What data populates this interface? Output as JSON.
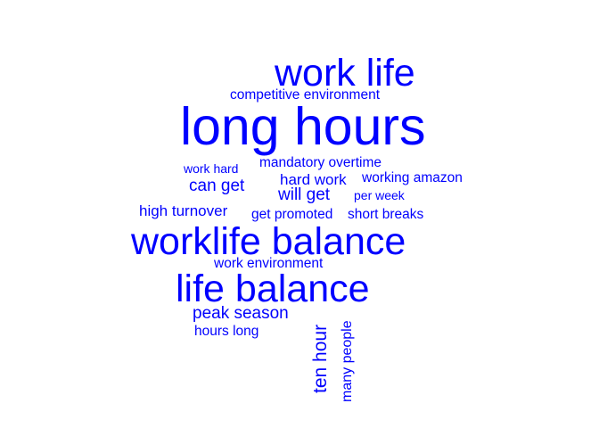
{
  "colors": {
    "word": "#0000ff",
    "background": "#ffffff"
  },
  "words": [
    {
      "text": "long hours"
    },
    {
      "text": "worklife balance"
    },
    {
      "text": "life balance"
    },
    {
      "text": "work life"
    },
    {
      "text": "ten hour"
    },
    {
      "text": "peak season"
    },
    {
      "text": "will get"
    },
    {
      "text": "can get"
    },
    {
      "text": "high turnover"
    },
    {
      "text": "hard work"
    },
    {
      "text": "mandatory overtime"
    },
    {
      "text": "work environment"
    },
    {
      "text": "competitive environment"
    },
    {
      "text": "working amazon"
    },
    {
      "text": "get promoted"
    },
    {
      "text": "short breaks"
    },
    {
      "text": "many people"
    },
    {
      "text": "hours long"
    },
    {
      "text": "work hard"
    },
    {
      "text": "per week"
    }
  ]
}
